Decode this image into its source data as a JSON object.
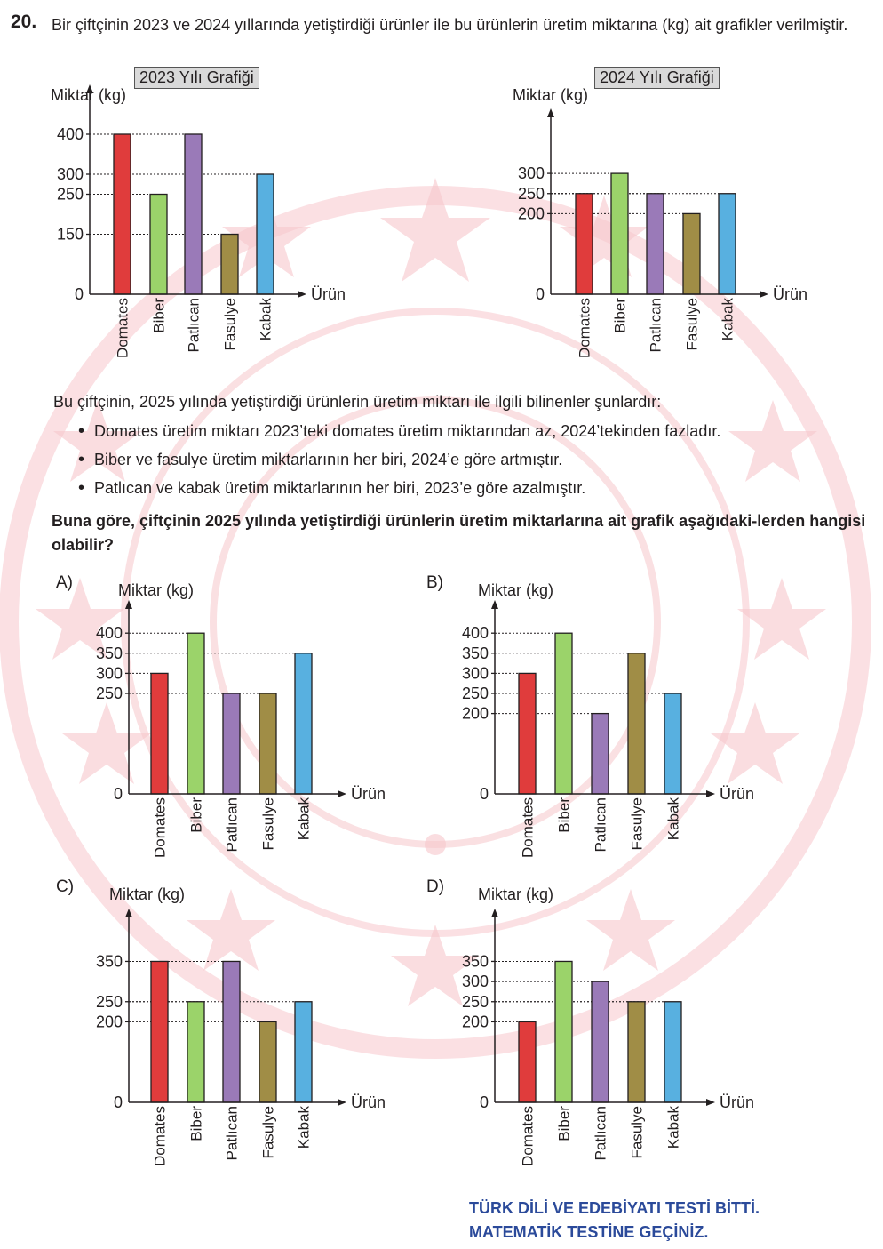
{
  "question": {
    "number": "20.",
    "text": "Bir çiftçinin 2023 ve 2024 yıllarında yetiştirdiği ürünler ile bu ürünlerin üretim miktarına (kg) ait grafikler verilmiştir.",
    "intro": "Bu çiftçinin, 2025 yılında yetiştirdiği ürünlerin üretim miktarı ile ilgili bilinenler şunlardır:",
    "bullets": [
      "Domates üretim miktarı 2023’teki domates üretim miktarından az, 2024’tekinden fazladır.",
      "Biber ve fasulye üretim miktarlarının her biri, 2024’e göre artmıştır.",
      "Patlıcan ve kabak üretim miktarlarının her biri, 2023’e göre azalmıştır."
    ],
    "prompt": "Buna göre, çiftçinin 2025 yılında yetiştirdiği ürünlerin üretim miktarlarına ait grafik aşağıdaki-lerden hangisi olabilir?"
  },
  "colors": {
    "Domates": "#e03c3c",
    "Biber": "#9bd36a",
    "Patlıcan": "#9a7ab8",
    "Fasulye": "#a08d46",
    "Kabak": "#58b0e0",
    "watermark": "#f7c7cc",
    "footer": "#2b4a9a"
  },
  "footer": {
    "line1": "TÜRK DİLİ VE EDEBİYATI TESTİ BİTTİ.",
    "line2": "MATEMATİK TESTİNE GEÇİNİZ."
  },
  "chart_data": [
    {
      "id": "y2023",
      "type": "bar",
      "title": "2023 Yılı Grafiği",
      "ylabel": "Miktar (kg)",
      "xlabel": "Ürün",
      "categories": [
        "Domates",
        "Biber",
        "Patlıcan",
        "Fasulye",
        "Kabak"
      ],
      "values": [
        400,
        250,
        400,
        150,
        300
      ],
      "yticks": [
        0,
        150,
        250,
        300,
        400
      ],
      "ylim": [
        0,
        400
      ]
    },
    {
      "id": "y2024",
      "type": "bar",
      "title": "2024 Yılı Grafiği",
      "ylabel": "Miktar (kg)",
      "xlabel": "Ürün",
      "categories": [
        "Domates",
        "Biber",
        "Patlıcan",
        "Fasulye",
        "Kabak"
      ],
      "values": [
        250,
        300,
        250,
        200,
        250
      ],
      "yticks": [
        0,
        200,
        250,
        300
      ],
      "ylim": [
        0,
        400
      ]
    },
    {
      "id": "optA",
      "type": "bar",
      "option": "A)",
      "ylabel": "Miktar (kg)",
      "xlabel": "Ürün",
      "categories": [
        "Domates",
        "Biber",
        "Patlıcan",
        "Fasulye",
        "Kabak"
      ],
      "values": [
        300,
        400,
        250,
        250,
        350
      ],
      "yticks": [
        0,
        250,
        300,
        350,
        400
      ],
      "ylim": [
        0,
        400
      ]
    },
    {
      "id": "optB",
      "type": "bar",
      "option": "B)",
      "ylabel": "Miktar (kg)",
      "xlabel": "Ürün",
      "categories": [
        "Domates",
        "Biber",
        "Patlıcan",
        "Fasulye",
        "Kabak"
      ],
      "values": [
        300,
        400,
        200,
        350,
        250
      ],
      "yticks": [
        0,
        200,
        250,
        300,
        350,
        400
      ],
      "ylim": [
        0,
        400
      ]
    },
    {
      "id": "optC",
      "type": "bar",
      "option": "C)",
      "ylabel": "Miktar (kg)",
      "xlabel": "Ürün",
      "categories": [
        "Domates",
        "Biber",
        "Patlıcan",
        "Fasulye",
        "Kabak"
      ],
      "values": [
        350,
        250,
        350,
        200,
        250
      ],
      "yticks": [
        0,
        200,
        250,
        350
      ],
      "ylim": [
        0,
        400
      ]
    },
    {
      "id": "optD",
      "type": "bar",
      "option": "D)",
      "ylabel": "Miktar (kg)",
      "xlabel": "Ürün",
      "categories": [
        "Domates",
        "Biber",
        "Patlıcan",
        "Fasulye",
        "Kabak"
      ],
      "values": [
        200,
        350,
        300,
        250,
        250
      ],
      "yticks": [
        0,
        200,
        250,
        300,
        350
      ],
      "ylim": [
        0,
        400
      ]
    }
  ]
}
